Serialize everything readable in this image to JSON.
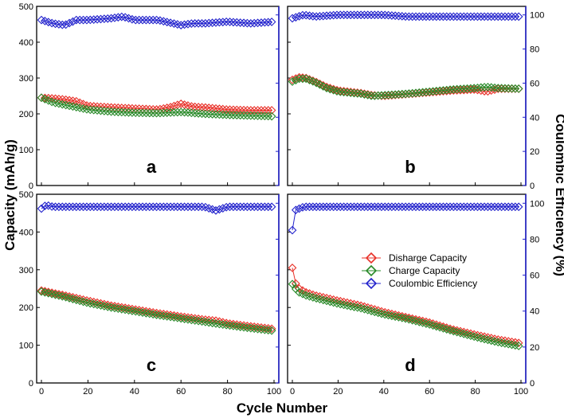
{
  "chart_data": {
    "type": "scatter",
    "xlabel": "Cycle Number",
    "ylabel_left": "Capacity (mAh/g)",
    "ylabel_right": "Coulombic Efficiency (%)",
    "xlim": [
      0,
      100
    ],
    "ylim_left": [
      0,
      500
    ],
    "ylim_right": [
      0,
      105
    ],
    "x_ticks": [
      "0",
      "20",
      "40",
      "60",
      "80",
      "100"
    ],
    "y_ticks_left": [
      "0",
      "100",
      "200",
      "300",
      "400",
      "500"
    ],
    "y_ticks_right": [
      "0",
      "20",
      "40",
      "60",
      "80",
      "100"
    ],
    "legend": [
      {
        "name": "Disharge Capacity",
        "color": "#e8322a"
      },
      {
        "name": "Charge Capacity",
        "color": "#2a8a2a"
      },
      {
        "name": "Coulombic Efficiency",
        "color": "#2222cc"
      }
    ],
    "legend_position": "panel-d-center",
    "colors": {
      "discharge": "#e8322a",
      "charge": "#2a8a2a",
      "efficiency": "#2222cc",
      "axis_right": "#2222cc"
    },
    "panels": [
      {
        "label": "a",
        "discharge": [
          [
            0,
            245
          ],
          [
            5,
            243
          ],
          [
            10,
            240
          ],
          [
            15,
            235
          ],
          [
            20,
            222
          ],
          [
            30,
            218
          ],
          [
            40,
            215
          ],
          [
            50,
            212
          ],
          [
            55,
            218
          ],
          [
            60,
            228
          ],
          [
            65,
            220
          ],
          [
            70,
            218
          ],
          [
            80,
            212
          ],
          [
            90,
            210
          ],
          [
            100,
            210
          ]
        ],
        "charge": [
          [
            0,
            245
          ],
          [
            5,
            232
          ],
          [
            10,
            225
          ],
          [
            20,
            212
          ],
          [
            30,
            206
          ],
          [
            40,
            203
          ],
          [
            50,
            202
          ],
          [
            60,
            205
          ],
          [
            70,
            200
          ],
          [
            80,
            197
          ],
          [
            90,
            195
          ],
          [
            100,
            193
          ]
        ],
        "efficiency": [
          [
            0,
            97
          ],
          [
            5,
            95
          ],
          [
            10,
            94
          ],
          [
            15,
            97
          ],
          [
            20,
            97
          ],
          [
            30,
            98
          ],
          [
            35,
            99
          ],
          [
            40,
            97
          ],
          [
            50,
            97
          ],
          [
            60,
            94
          ],
          [
            65,
            95
          ],
          [
            70,
            95
          ],
          [
            80,
            96
          ],
          [
            90,
            95
          ],
          [
            100,
            96
          ]
        ]
      },
      {
        "label": "b",
        "discharge": [
          [
            0,
            295
          ],
          [
            3,
            302
          ],
          [
            6,
            300
          ],
          [
            10,
            290
          ],
          [
            15,
            275
          ],
          [
            20,
            265
          ],
          [
            30,
            258
          ],
          [
            35,
            252
          ],
          [
            40,
            250
          ],
          [
            50,
            255
          ],
          [
            60,
            260
          ],
          [
            70,
            265
          ],
          [
            80,
            268
          ],
          [
            85,
            262
          ],
          [
            90,
            270
          ],
          [
            100,
            270
          ]
        ],
        "charge": [
          [
            0,
            290
          ],
          [
            3,
            298
          ],
          [
            6,
            298
          ],
          [
            10,
            288
          ],
          [
            15,
            272
          ],
          [
            20,
            262
          ],
          [
            30,
            256
          ],
          [
            35,
            250
          ],
          [
            40,
            252
          ],
          [
            50,
            256
          ],
          [
            60,
            262
          ],
          [
            70,
            268
          ],
          [
            80,
            272
          ],
          [
            85,
            275
          ],
          [
            90,
            272
          ],
          [
            100,
            270
          ]
        ],
        "efficiency": [
          [
            0,
            98
          ],
          [
            5,
            100
          ],
          [
            10,
            99
          ],
          [
            20,
            100
          ],
          [
            30,
            100
          ],
          [
            40,
            100
          ],
          [
            50,
            99
          ],
          [
            60,
            99
          ],
          [
            70,
            99
          ],
          [
            80,
            99
          ],
          [
            90,
            99
          ],
          [
            100,
            99
          ]
        ]
      },
      {
        "label": "c",
        "discharge": [
          [
            0,
            245
          ],
          [
            10,
            232
          ],
          [
            20,
            218
          ],
          [
            30,
            205
          ],
          [
            40,
            195
          ],
          [
            50,
            185
          ],
          [
            60,
            176
          ],
          [
            70,
            168
          ],
          [
            75,
            165
          ],
          [
            80,
            158
          ],
          [
            90,
            150
          ],
          [
            100,
            143
          ]
        ],
        "charge": [
          [
            0,
            242
          ],
          [
            10,
            228
          ],
          [
            20,
            212
          ],
          [
            30,
            200
          ],
          [
            40,
            190
          ],
          [
            50,
            180
          ],
          [
            60,
            171
          ],
          [
            70,
            162
          ],
          [
            80,
            153
          ],
          [
            90,
            145
          ],
          [
            100,
            138
          ]
        ],
        "efficiency": [
          [
            0,
            97
          ],
          [
            2,
            99
          ],
          [
            5,
            98
          ],
          [
            10,
            98
          ],
          [
            20,
            98
          ],
          [
            30,
            98
          ],
          [
            40,
            98
          ],
          [
            50,
            98
          ],
          [
            60,
            98
          ],
          [
            70,
            98
          ],
          [
            75,
            96
          ],
          [
            80,
            98
          ],
          [
            90,
            98
          ],
          [
            100,
            98
          ]
        ]
      },
      {
        "label": "d",
        "discharge": [
          [
            0,
            305
          ],
          [
            1,
            268
          ],
          [
            3,
            250
          ],
          [
            6,
            240
          ],
          [
            10,
            232
          ],
          [
            20,
            218
          ],
          [
            30,
            205
          ],
          [
            40,
            188
          ],
          [
            50,
            174
          ],
          [
            60,
            160
          ],
          [
            70,
            142
          ],
          [
            80,
            128
          ],
          [
            90,
            115
          ],
          [
            100,
            105
          ]
        ],
        "charge": [
          [
            0,
            262
          ],
          [
            1,
            252
          ],
          [
            3,
            240
          ],
          [
            6,
            232
          ],
          [
            10,
            225
          ],
          [
            20,
            210
          ],
          [
            30,
            198
          ],
          [
            40,
            182
          ],
          [
            50,
            170
          ],
          [
            60,
            155
          ],
          [
            70,
            138
          ],
          [
            80,
            122
          ],
          [
            90,
            108
          ],
          [
            100,
            97
          ]
        ],
        "efficiency": [
          [
            0,
            85
          ],
          [
            1,
            96
          ],
          [
            3,
            97
          ],
          [
            5,
            98
          ],
          [
            10,
            98
          ],
          [
            20,
            98
          ],
          [
            30,
            98
          ],
          [
            40,
            98
          ],
          [
            50,
            98
          ],
          [
            60,
            98
          ],
          [
            70,
            98
          ],
          [
            80,
            98
          ],
          [
            90,
            98
          ],
          [
            100,
            98
          ]
        ]
      }
    ]
  }
}
